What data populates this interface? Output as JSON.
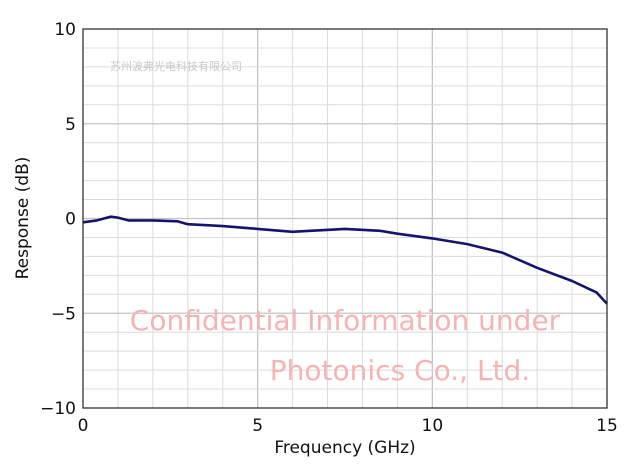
{
  "chart_data": {
    "type": "line",
    "title": "",
    "xlabel": "Frequency (GHz)",
    "ylabel": "Response (dB)",
    "xlim": [
      0,
      15
    ],
    "ylim": [
      -10,
      10
    ],
    "xticks": [
      0,
      5,
      10,
      15
    ],
    "yticks": [
      -10,
      -5,
      0,
      5,
      10
    ],
    "xtick_labels": [
      "0",
      "5",
      "10",
      "15"
    ],
    "ytick_labels": [
      "−10",
      "−5",
      "0",
      "5",
      "10"
    ],
    "grid": true,
    "minor_grid_step": {
      "x": 1,
      "y": 1
    },
    "series": [
      {
        "color": "#14146e",
        "x": [
          0,
          0.4,
          0.8,
          1.0,
          1.3,
          2.0,
          2.7,
          3.0,
          4.0,
          5.0,
          6.0,
          6.5,
          7.5,
          8.5,
          9.0,
          10.0,
          11.0,
          12.0,
          13.0,
          14.0,
          14.7,
          15.0
        ],
        "y": [
          -0.2,
          -0.1,
          0.1,
          0.05,
          -0.1,
          -0.1,
          -0.15,
          -0.3,
          -0.4,
          -0.55,
          -0.7,
          -0.65,
          -0.55,
          -0.65,
          -0.8,
          -1.05,
          -1.35,
          -1.8,
          -2.6,
          -3.3,
          -3.9,
          -4.5
        ]
      }
    ]
  },
  "watermark": {
    "line1": "Confidential Information under",
    "line2": "Photonics Co., Ltd.",
    "company_cn": "苏州波弗光电科技有限公司",
    "color": "#f08080"
  }
}
